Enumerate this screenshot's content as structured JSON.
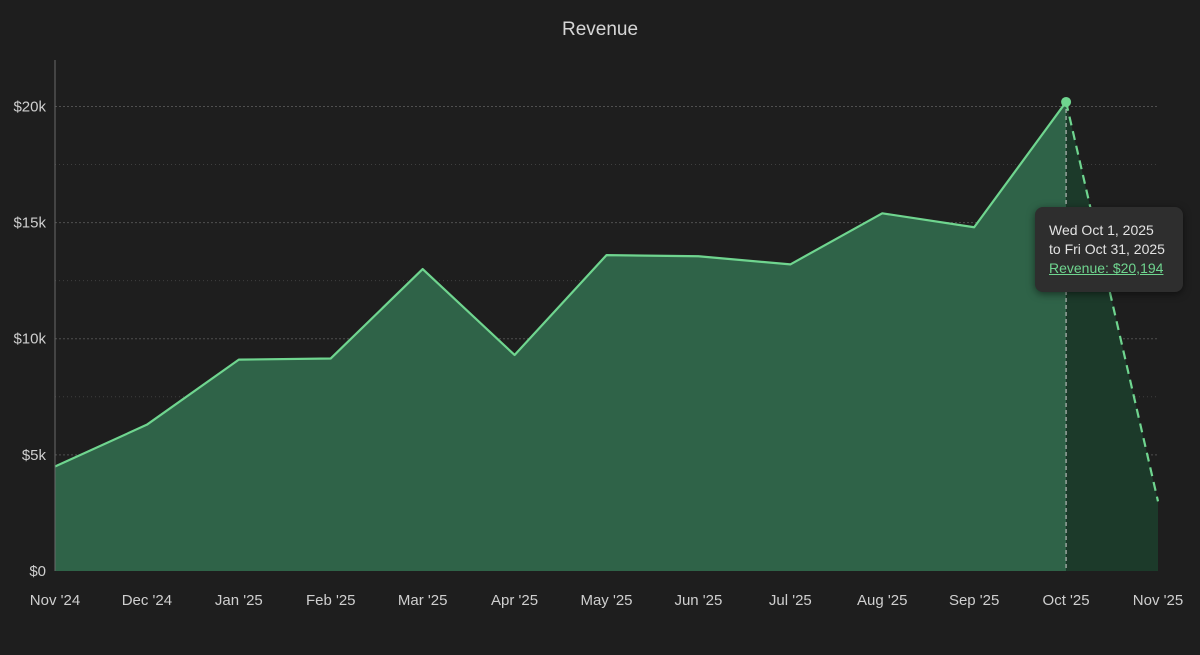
{
  "chart_data": {
    "type": "area",
    "title": "Revenue",
    "xlabel": "",
    "ylabel": "",
    "categories": [
      "Nov '24",
      "Dec '24",
      "Jan '25",
      "Feb '25",
      "Mar '25",
      "Apr '25",
      "May '25",
      "Jun '25",
      "Jul '25",
      "Aug '25",
      "Sep '25",
      "Oct '25",
      "Nov '25"
    ],
    "series": [
      {
        "name": "Revenue",
        "values": [
          4500,
          6300,
          9100,
          9150,
          13000,
          9300,
          13600,
          13550,
          13200,
          15400,
          14800,
          20194,
          3000
        ],
        "projected_from_index": 11
      }
    ],
    "ylim": [
      0,
      22000
    ],
    "yticks": [
      0,
      5000,
      10000,
      15000,
      20000
    ],
    "ytick_labels": [
      "$0",
      "$5k",
      "$10k",
      "$15k",
      "$20k"
    ],
    "grid": true,
    "highlight_index": 11,
    "colors": {
      "line": "#6fd58f",
      "area": "#2f6348",
      "area_projected": "#1c3a2a",
      "grid": "#555555",
      "background": "#1e1e1e"
    }
  },
  "tooltip": {
    "date_line1": "Wed Oct 1, 2025",
    "date_line2": "to Fri Oct 31, 2025",
    "value_label": "Revenue: $20,194"
  }
}
